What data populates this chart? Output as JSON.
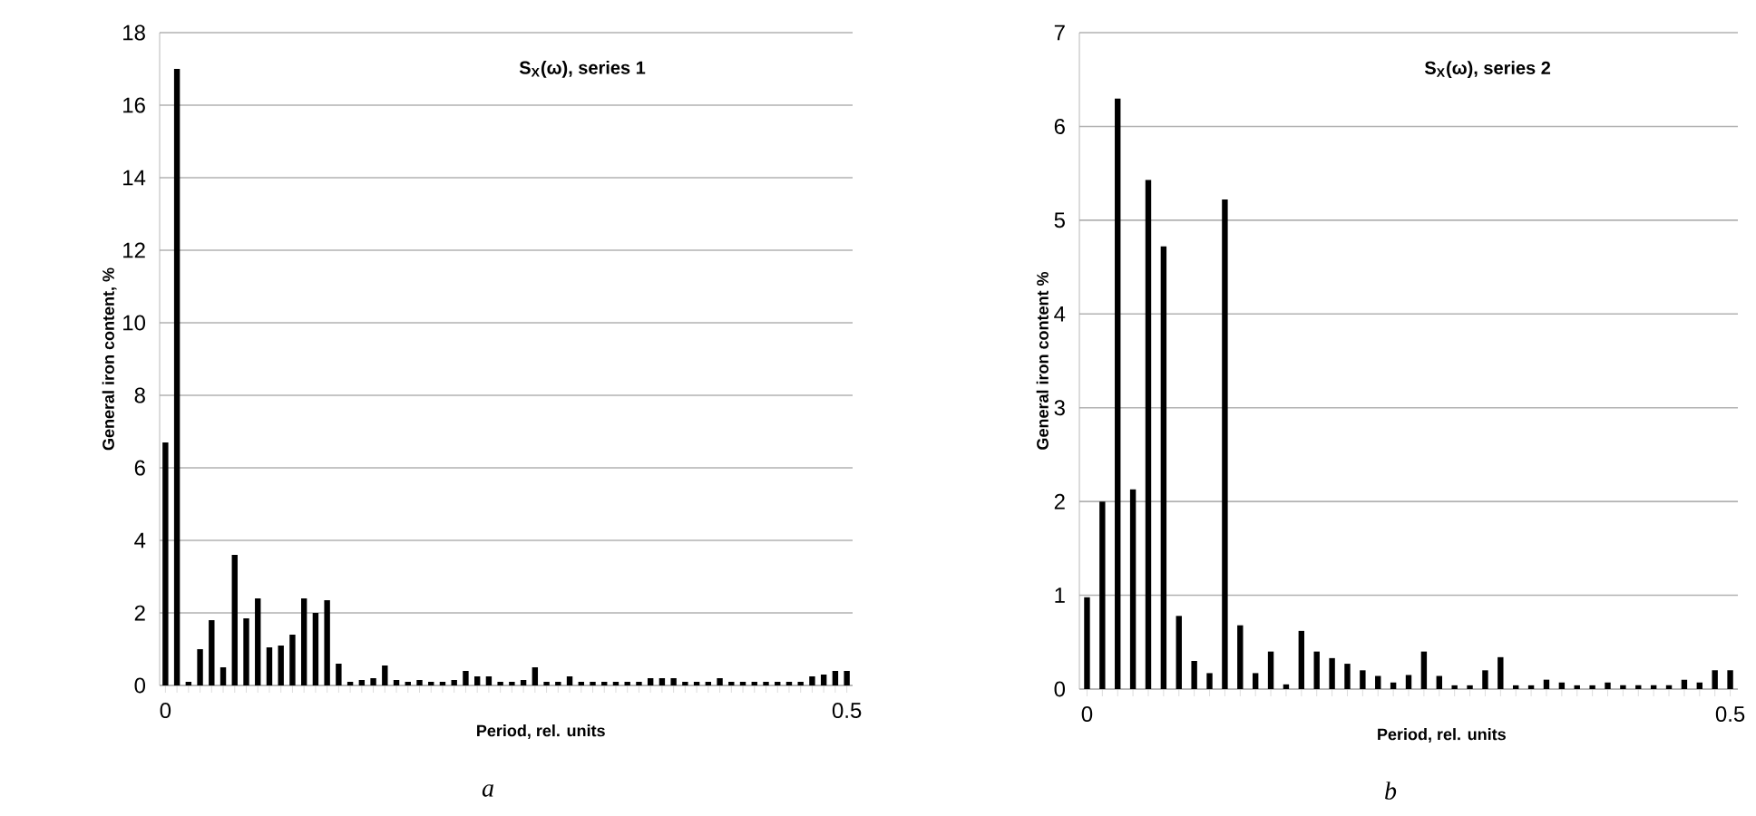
{
  "chart_data": [
    {
      "type": "bar",
      "title": "S$_{X}$(ω), series 1",
      "xlabel": "Period, rel. units",
      "ylabel": "General iron content, %",
      "categories": [
        "0",
        null,
        null,
        null,
        null,
        null,
        null,
        null,
        null,
        null,
        null,
        null,
        null,
        null,
        null,
        null,
        null,
        null,
        null,
        null,
        null,
        null,
        null,
        null,
        null,
        null,
        null,
        null,
        null,
        null,
        null,
        null,
        null,
        null,
        null,
        null,
        null,
        null,
        null,
        null,
        null,
        null,
        null,
        null,
        null,
        null,
        null,
        null,
        null,
        null,
        null,
        null,
        null,
        null,
        null,
        null,
        null,
        null,
        null,
        "0.5"
      ],
      "values": [
        6.7,
        17.0,
        0.1,
        1.0,
        1.8,
        0.5,
        3.6,
        1.85,
        2.4,
        1.05,
        1.1,
        1.4,
        2.4,
        2.0,
        2.35,
        0.6,
        0.1,
        0.15,
        0.2,
        0.55,
        0.15,
        0.1,
        0.15,
        0.1,
        0.1,
        0.15,
        0.4,
        0.25,
        0.25,
        0.1,
        0.1,
        0.15,
        0.5,
        0.1,
        0.1,
        0.25,
        0.1,
        0.1,
        0.1,
        0.1,
        0.1,
        0.1,
        0.2,
        0.2,
        0.2,
        0.1,
        0.1,
        0.1,
        0.2,
        0.1,
        0.1,
        0.1,
        0.1,
        0.1,
        0.1,
        0.1,
        0.25,
        0.3,
        0.4,
        0.4
      ],
      "color": "#000000",
      "ylim": [
        0,
        18
      ],
      "yticks": [
        0,
        2,
        4,
        6,
        8,
        10,
        12,
        14,
        16,
        18
      ],
      "grid": "y",
      "annotations": [
        "a"
      ]
    },
    {
      "type": "bar",
      "title": "S$_{X}$(ω), series 2",
      "xlabel": "Period, rel. units",
      "ylabel": "General iron content %",
      "categories": [
        "0",
        null,
        null,
        null,
        null,
        null,
        null,
        null,
        null,
        null,
        null,
        null,
        null,
        null,
        null,
        null,
        null,
        null,
        null,
        null,
        null,
        null,
        null,
        null,
        null,
        null,
        null,
        null,
        null,
        null,
        null,
        null,
        null,
        null,
        null,
        null,
        null,
        null,
        null,
        null,
        null,
        null,
        "0.5"
      ],
      "values": [
        0.98,
        2.0,
        6.3,
        2.13,
        5.43,
        4.72,
        0.78,
        0.3,
        0.17,
        5.22,
        0.68,
        0.17,
        0.4,
        0.05,
        0.62,
        0.4,
        0.33,
        0.27,
        0.2,
        0.14,
        0.07,
        0.15,
        0.4,
        0.14,
        0.04,
        0.04,
        0.2,
        0.34,
        0.04,
        0.04,
        0.1,
        0.07,
        0.04,
        0.04,
        0.07,
        0.04,
        0.04,
        0.04,
        0.04,
        0.1,
        0.07,
        0.2,
        0.2
      ],
      "color": "#000000",
      "ylim": [
        0,
        7
      ],
      "yticks": [
        0,
        1,
        2,
        3,
        4,
        5,
        6,
        7
      ],
      "grid": "y",
      "annotations": [
        "b"
      ]
    }
  ]
}
